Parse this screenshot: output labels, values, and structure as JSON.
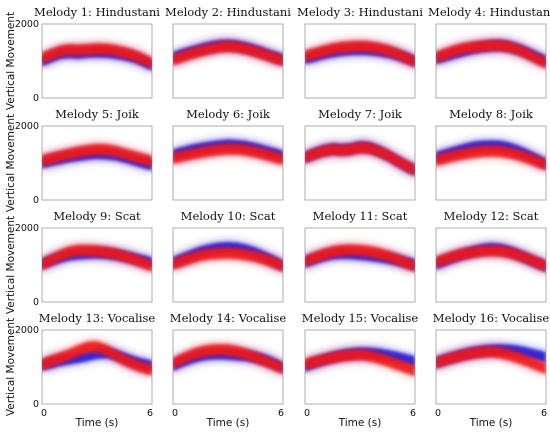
{
  "chart_data": {
    "type": "area",
    "layout": "4x4 grid of small multiples, shared axes",
    "ylabel": "Vertical Movement",
    "xlabel": "Time (s)",
    "xlim": [
      0,
      6
    ],
    "ylim": [
      0,
      2000
    ],
    "x_ticks": [
      "0",
      "6"
    ],
    "y_ticks": [
      "0",
      "2000"
    ],
    "band_colors": {
      "blue": "#1f1fe0",
      "red": "#f01414"
    },
    "panels": [
      {
        "title": "Melody 1: Hindustani",
        "x": [
          0,
          0.5,
          1,
          1.5,
          2,
          2.5,
          3,
          3.5,
          4,
          4.5,
          5,
          5.5,
          6
        ],
        "blue": [
          1000,
          1100,
          1200,
          1220,
          1200,
          1230,
          1240,
          1230,
          1200,
          1160,
          1100,
          1000,
          880
        ],
        "red": [
          1080,
          1180,
          1270,
          1310,
          1300,
          1310,
          1330,
          1320,
          1290,
          1230,
          1160,
          1060,
          940
        ]
      },
      {
        "title": "Melody 2: Hindustani",
        "x": [
          0,
          0.5,
          1,
          1.5,
          2,
          2.5,
          3,
          3.5,
          4,
          4.5,
          5,
          5.5,
          6
        ],
        "blue": [
          1100,
          1180,
          1250,
          1320,
          1380,
          1420,
          1430,
          1410,
          1360,
          1290,
          1210,
          1120,
          1050
        ],
        "red": [
          1020,
          1110,
          1190,
          1260,
          1320,
          1370,
          1390,
          1370,
          1320,
          1250,
          1170,
          1080,
          1000
        ]
      },
      {
        "title": "Melody 3: Hindustani",
        "x": [
          0,
          0.5,
          1,
          1.5,
          2,
          2.5,
          3,
          3.5,
          4,
          4.5,
          5,
          5.5,
          6
        ],
        "blue": [
          1060,
          1120,
          1190,
          1240,
          1280,
          1300,
          1310,
          1300,
          1270,
          1230,
          1170,
          1090,
          1000
        ],
        "red": [
          1140,
          1200,
          1270,
          1330,
          1370,
          1390,
          1400,
          1390,
          1350,
          1290,
          1200,
          1090,
          970
        ]
      },
      {
        "title": "Melody 4: Hindustani",
        "x": [
          0,
          0.5,
          1,
          1.5,
          2,
          2.5,
          3,
          3.5,
          4,
          4.5,
          5,
          5.5,
          6
        ],
        "blue": [
          1060,
          1130,
          1200,
          1270,
          1330,
          1380,
          1410,
          1420,
          1390,
          1320,
          1220,
          1110,
          1000
        ],
        "red": [
          1100,
          1190,
          1280,
          1340,
          1380,
          1400,
          1420,
          1420,
          1380,
          1300,
          1190,
          1060,
          940
        ]
      },
      {
        "title": "Melody 5: Joik",
        "x": [
          0,
          0.5,
          1,
          1.5,
          2,
          2.5,
          3,
          3.5,
          4,
          4.5,
          5,
          5.5,
          6
        ],
        "blue": [
          1000,
          1060,
          1110,
          1160,
          1200,
          1230,
          1250,
          1240,
          1210,
          1150,
          1080,
          1010,
          940
        ],
        "red": [
          1070,
          1130,
          1190,
          1250,
          1300,
          1340,
          1370,
          1360,
          1320,
          1250,
          1180,
          1110,
          1050
        ]
      },
      {
        "title": "Melody 6: Joik",
        "x": [
          0,
          0.5,
          1,
          1.5,
          2,
          2.5,
          3,
          3.5,
          4,
          4.5,
          5,
          5.5,
          6
        ],
        "blue": [
          1220,
          1290,
          1350,
          1400,
          1440,
          1470,
          1490,
          1480,
          1450,
          1400,
          1330,
          1260,
          1190
        ],
        "red": [
          1120,
          1180,
          1230,
          1280,
          1320,
          1350,
          1370,
          1370,
          1340,
          1290,
          1230,
          1160,
          1090
        ]
      },
      {
        "title": "Melody 7: Joik",
        "x": [
          0,
          0.5,
          1,
          1.5,
          2,
          2.5,
          3,
          3.5,
          4,
          4.5,
          5,
          5.5,
          6
        ],
        "blue": [
          1150,
          1250,
          1330,
          1380,
          1360,
          1380,
          1440,
          1420,
          1330,
          1210,
          1060,
          920,
          800
        ],
        "red": [
          1150,
          1240,
          1320,
          1360,
          1340,
          1360,
          1410,
          1400,
          1320,
          1210,
          1070,
          930,
          810
        ]
      },
      {
        "title": "Melody 8: Joik",
        "x": [
          0,
          0.5,
          1,
          1.5,
          2,
          2.5,
          3,
          3.5,
          4,
          4.5,
          5,
          5.5,
          6
        ],
        "blue": [
          1160,
          1230,
          1300,
          1370,
          1430,
          1460,
          1470,
          1460,
          1410,
          1330,
          1220,
          1100,
          980
        ],
        "red": [
          1070,
          1130,
          1190,
          1240,
          1280,
          1310,
          1320,
          1310,
          1270,
          1210,
          1130,
          1040,
          950
        ]
      },
      {
        "title": "Melody 9: Scat",
        "x": [
          0,
          0.5,
          1,
          1.5,
          2,
          2.5,
          3,
          3.5,
          4,
          4.5,
          5,
          5.5,
          6
        ],
        "blue": [
          1030,
          1120,
          1200,
          1260,
          1290,
          1310,
          1320,
          1310,
          1280,
          1240,
          1180,
          1120,
          1060
        ],
        "red": [
          1010,
          1140,
          1260,
          1360,
          1400,
          1400,
          1380,
          1350,
          1300,
          1230,
          1150,
          1060,
          960
        ]
      },
      {
        "title": "Melody 10: Scat",
        "x": [
          0,
          0.5,
          1,
          1.5,
          2,
          2.5,
          3,
          3.5,
          4,
          4.5,
          5,
          5.5,
          6
        ],
        "blue": [
          1070,
          1170,
          1270,
          1360,
          1420,
          1460,
          1480,
          1460,
          1410,
          1330,
          1220,
          1110,
          980
        ],
        "red": [
          1020,
          1100,
          1180,
          1250,
          1290,
          1310,
          1320,
          1300,
          1270,
          1220,
          1150,
          1060,
          970
        ]
      },
      {
        "title": "Melody 11: Scat",
        "x": [
          0,
          0.5,
          1,
          1.5,
          2,
          2.5,
          3,
          3.5,
          4,
          4.5,
          5,
          5.5,
          6
        ],
        "blue": [
          1080,
          1160,
          1240,
          1290,
          1310,
          1300,
          1280,
          1250,
          1220,
          1180,
          1130,
          1070,
          1010
        ],
        "red": [
          1100,
          1200,
          1290,
          1360,
          1400,
          1410,
          1400,
          1370,
          1320,
          1250,
          1160,
          1060,
          960
        ]
      },
      {
        "title": "Melody 12: Scat",
        "x": [
          0,
          0.5,
          1,
          1.5,
          2,
          2.5,
          3,
          3.5,
          4,
          4.5,
          5,
          5.5,
          6
        ],
        "blue": [
          1020,
          1120,
          1210,
          1290,
          1360,
          1420,
          1450,
          1430,
          1370,
          1280,
          1170,
          1060,
          960
        ],
        "red": [
          1080,
          1160,
          1240,
          1300,
          1340,
          1370,
          1380,
          1370,
          1330,
          1260,
          1170,
          1070,
          970
        ]
      },
      {
        "title": "Melody 13: Vocalise",
        "x": [
          0,
          0.5,
          1,
          1.5,
          2,
          2.5,
          3,
          3.5,
          4,
          4.5,
          5,
          5.5,
          6
        ],
        "blue": [
          1050,
          1110,
          1170,
          1210,
          1250,
          1300,
          1360,
          1380,
          1330,
          1240,
          1150,
          1080,
          1030
        ],
        "red": [
          1070,
          1160,
          1250,
          1340,
          1450,
          1540,
          1550,
          1460,
          1320,
          1180,
          1070,
          980,
          920
        ]
      },
      {
        "title": "Melody 14: Vocalise",
        "x": [
          0,
          0.5,
          1,
          1.5,
          2,
          2.5,
          3,
          3.5,
          4,
          4.5,
          5,
          5.5,
          6
        ],
        "blue": [
          1040,
          1140,
          1230,
          1300,
          1340,
          1350,
          1340,
          1320,
          1300,
          1260,
          1200,
          1100,
          980
        ],
        "red": [
          1100,
          1220,
          1330,
          1410,
          1450,
          1470,
          1460,
          1420,
          1350,
          1260,
          1160,
          1060,
          960
        ]
      },
      {
        "title": "Melody 15: Vocalise",
        "x": [
          0,
          0.5,
          1,
          1.5,
          2,
          2.5,
          3,
          3.5,
          4,
          4.5,
          5,
          5.5,
          6
        ],
        "blue": [
          1020,
          1110,
          1190,
          1260,
          1320,
          1360,
          1380,
          1380,
          1360,
          1320,
          1270,
          1210,
          1150
        ],
        "red": [
          1080,
          1140,
          1200,
          1250,
          1290,
          1320,
          1330,
          1300,
          1240,
          1160,
          1070,
          980,
          900
        ]
      },
      {
        "title": "Melody 16: Vocalise",
        "x": [
          0,
          0.5,
          1,
          1.5,
          2,
          2.5,
          3,
          3.5,
          4,
          4.5,
          5,
          5.5,
          6
        ],
        "blue": [
          1120,
          1200,
          1270,
          1340,
          1390,
          1430,
          1460,
          1470,
          1460,
          1430,
          1380,
          1320,
          1260
        ],
        "red": [
          1110,
          1190,
          1260,
          1320,
          1370,
          1400,
          1410,
          1380,
          1320,
          1240,
          1150,
          1050,
          950
        ]
      }
    ]
  }
}
